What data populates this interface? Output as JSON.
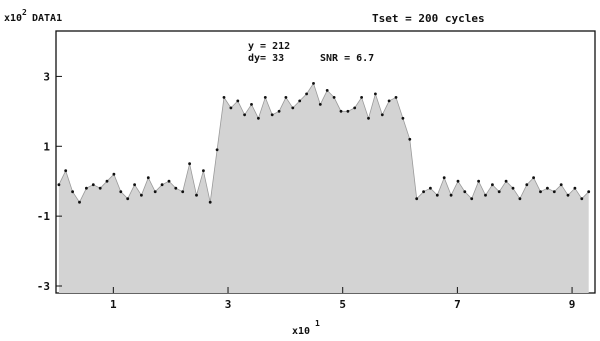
{
  "chart_data": {
    "type": "area",
    "x_multiplier_label": "x10",
    "x_multiplier_exp": "1",
    "y_multiplier_label": "x10",
    "y_multiplier_exp": "2",
    "series_label": "DATA1",
    "header_right": "Tset = 200 cycles",
    "readout_y": "y = 212",
    "readout_dy": "dy= 33",
    "readout_snr": "SNR = 6.7",
    "xlim": [
      0,
      9.4
    ],
    "ylim": [
      -3.2,
      4.3
    ],
    "x_ticks": [
      1,
      3,
      5,
      7,
      9
    ],
    "x_tick_labels": [
      "1",
      "3",
      "5",
      "7",
      "9"
    ],
    "y_ticks": [
      -3,
      -1,
      1,
      3
    ],
    "y_tick_labels": [
      "-3",
      "-1",
      "1",
      "3"
    ],
    "fill_color": "#d3d3d3",
    "point_color": "#111111",
    "grid": false,
    "x": [
      0.05,
      0.17,
      0.29,
      0.41,
      0.53,
      0.65,
      0.77,
      0.89,
      1.01,
      1.13,
      1.25,
      1.37,
      1.49,
      1.61,
      1.73,
      1.85,
      1.97,
      2.09,
      2.21,
      2.33,
      2.45,
      2.57,
      2.69,
      2.81,
      2.93,
      3.05,
      3.17,
      3.29,
      3.41,
      3.53,
      3.65,
      3.77,
      3.89,
      4.01,
      4.13,
      4.25,
      4.37,
      4.49,
      4.61,
      4.73,
      4.85,
      4.97,
      5.09,
      5.21,
      5.33,
      5.45,
      5.57,
      5.69,
      5.81,
      5.93,
      6.05,
      6.17,
      6.29,
      6.41,
      6.53,
      6.65,
      6.77,
      6.89,
      7.01,
      7.13,
      7.25,
      7.37,
      7.49,
      7.61,
      7.73,
      7.85,
      7.97,
      8.09,
      8.21,
      8.33,
      8.45,
      8.57,
      8.69,
      8.81,
      8.93,
      9.05,
      9.17,
      9.29
    ],
    "y": [
      -0.1,
      0.3,
      -0.3,
      -0.6,
      -0.2,
      -0.1,
      -0.2,
      0.0,
      0.2,
      -0.3,
      -0.5,
      -0.1,
      -0.4,
      0.1,
      -0.3,
      -0.1,
      0.0,
      -0.2,
      -0.3,
      0.5,
      -0.4,
      0.3,
      -0.6,
      0.9,
      2.4,
      2.1,
      2.3,
      1.9,
      2.2,
      1.8,
      2.4,
      1.9,
      2.0,
      2.4,
      2.1,
      2.3,
      2.5,
      2.8,
      2.2,
      2.6,
      2.4,
      2.0,
      2.0,
      2.1,
      2.4,
      1.8,
      2.5,
      1.9,
      2.3,
      2.4,
      1.8,
      1.2,
      -0.5,
      -0.3,
      -0.2,
      -0.4,
      0.1,
      -0.4,
      0.0,
      -0.3,
      -0.5,
      0.0,
      -0.4,
      -0.1,
      -0.3,
      0.0,
      -0.2,
      -0.5,
      -0.1,
      0.1,
      -0.3,
      -0.2,
      -0.3,
      -0.1,
      -0.4,
      -0.2,
      -0.5,
      -0.3
    ]
  }
}
